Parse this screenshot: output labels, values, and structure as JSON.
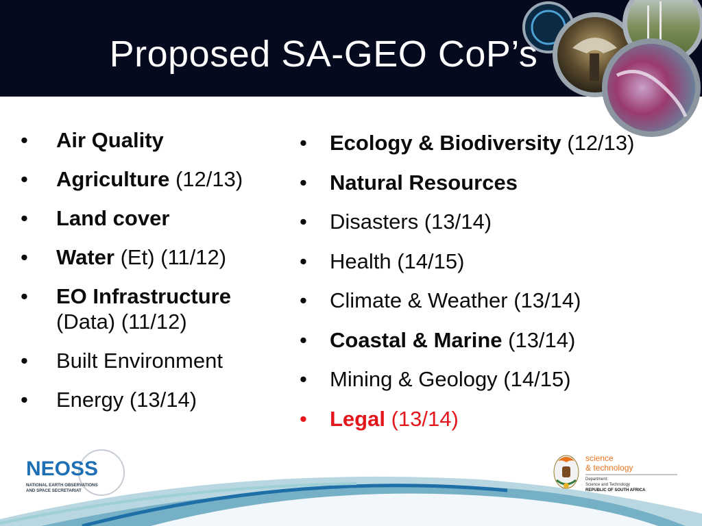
{
  "slide": {
    "title": "Proposed SA-GEO CoP’s"
  },
  "left_list": [
    {
      "bold": "Air Quality",
      "rest": ""
    },
    {
      "bold": "Agriculture",
      "rest": " (12/13)"
    },
    {
      "bold": "Land cover",
      "rest": ""
    },
    {
      "bold": "Water",
      "rest": " (Et) (11/12)"
    },
    {
      "bold": "EO Infrastructure",
      "rest": "(Data) (11/12)"
    },
    {
      "bold": "",
      "rest": "Built Environment"
    },
    {
      "bold": "",
      "rest": "Energy (13/14)"
    }
  ],
  "right_list": [
    {
      "bold": "Ecology & Biodiversity",
      "rest": " (12/13)"
    },
    {
      "bold": "Natural Resources",
      "rest": ""
    },
    {
      "bold": "",
      "rest": "Disasters (13/14)"
    },
    {
      "bold": "",
      "rest": "Health (14/15)"
    },
    {
      "bold": "",
      "rest": "Climate & Weather (13/14)"
    },
    {
      "bold": "Coastal & Marine",
      "rest": " (13/14)"
    },
    {
      "bold": "",
      "rest": "Mining & Geology (14/15)"
    },
    {
      "bold": "Legal",
      "rest": " (13/14)"
    }
  ],
  "bullet_char": "•",
  "logos": {
    "neoss": {
      "wordmark": "NEOSS",
      "line1": "NATIONAL EARTH OBSERVATIONS",
      "line2": "AND SPACE SECRETARIAT"
    },
    "dst": {
      "line1": "science",
      "line2": "& technology",
      "dept1": "Department:",
      "dept2": "Science and Technology",
      "dept3": "REPUBLIC OF SOUTH AFRICA"
    }
  },
  "colors": {
    "header_bg": "#060a1e",
    "legal_red": "#e3161c",
    "neoss_blue": "#1f6fb5",
    "dst_orange": "#e8731c"
  }
}
